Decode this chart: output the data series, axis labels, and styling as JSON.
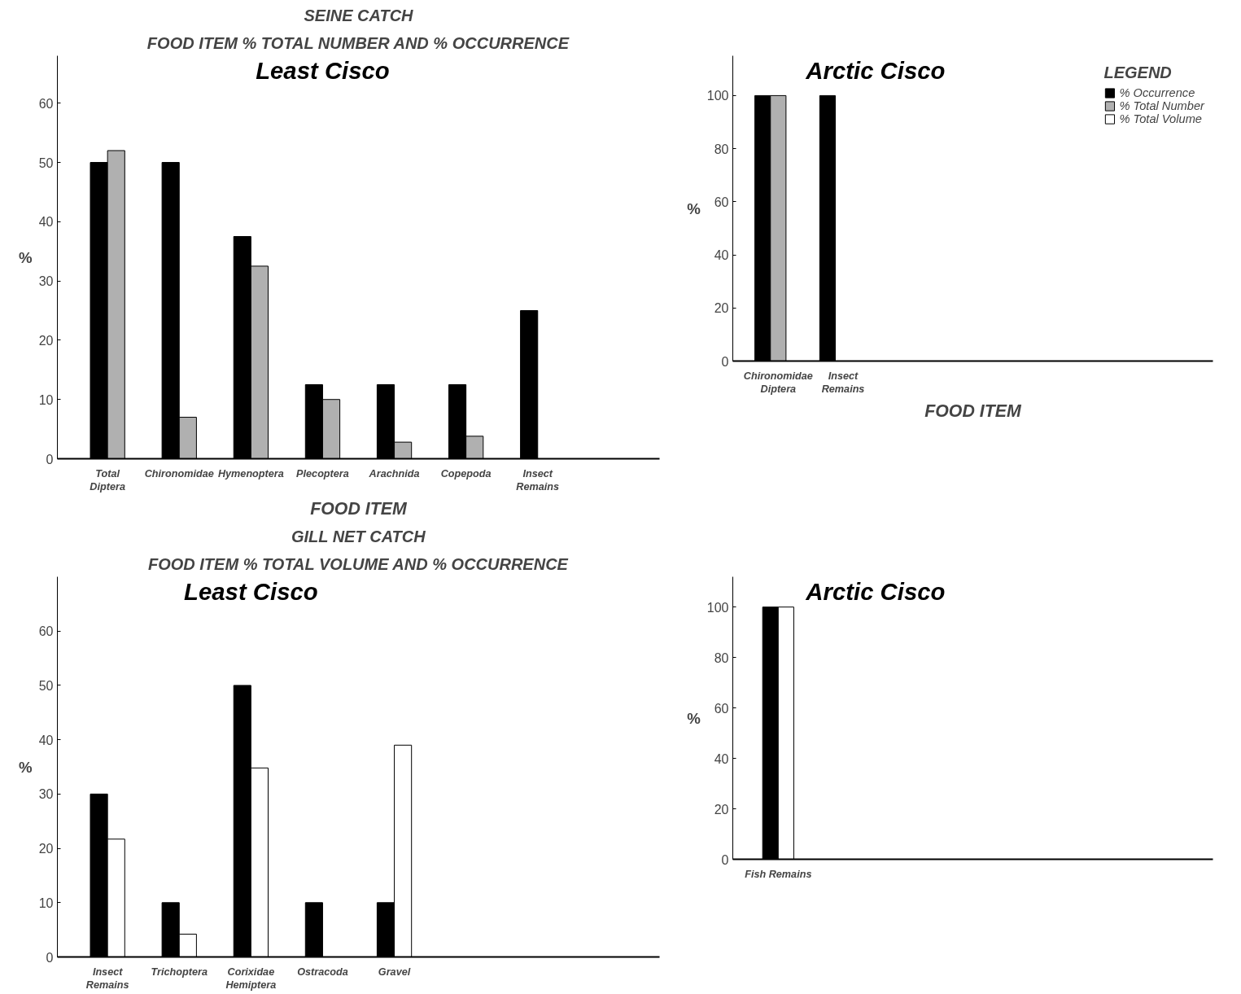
{
  "chart_data": [
    {
      "type": "bar",
      "title": "Least Cisco",
      "annotations": [
        "SEINE CATCH",
        "FOOD ITEM % TOTAL NUMBER AND % OCCURRENCE"
      ],
      "xlabel": "FOOD ITEM",
      "ylabel": "%",
      "categories": [
        "Total\nDiptera",
        "Chironomidae",
        "Hymenoptera",
        "Plecoptera",
        "Arachnida",
        "Copepoda",
        "Insect\nRemains"
      ],
      "series": [
        {
          "color": "#000000",
          "values": [
            50,
            50,
            37.5,
            12.5,
            12.5,
            12.5,
            25
          ]
        },
        {
          "color": "#b0b0b0",
          "values": [
            52,
            7,
            32.5,
            10,
            2.8,
            3.8,
            null
          ]
        }
      ],
      "ylim": [
        0,
        68
      ],
      "yticks": [
        0,
        10,
        20,
        30,
        40,
        50,
        60
      ],
      "grid": false,
      "legend": false
    },
    {
      "type": "bar",
      "title": "Arctic Cisco",
      "xlabel": "FOOD ITEM",
      "ylabel": "%",
      "legend_title": "LEGEND",
      "categories": [
        "Chironomidae\nDiptera",
        "Insect\nRemains"
      ],
      "series": [
        {
          "name": "% Occurrence",
          "color": "#000000",
          "values": [
            100,
            100
          ]
        },
        {
          "name": "% Total Number",
          "color": "#b0b0b0",
          "values": [
            100,
            null
          ]
        },
        {
          "name": "% Total Volume",
          "color": "#ffffff",
          "values": [
            null,
            null
          ]
        }
      ],
      "ylim": [
        0,
        115
      ],
      "yticks": [
        0,
        20,
        40,
        60,
        80,
        100
      ],
      "grid": false,
      "legend": "top right"
    },
    {
      "type": "bar",
      "title": "Least Cisco",
      "annotations": [
        "GILL NET CATCH",
        "FOOD ITEM % TOTAL VOLUME AND % OCCURRENCE"
      ],
      "ylabel": "%",
      "categories": [
        "Insect\nRemains",
        "Trichoptera",
        "Corixidae\nHemiptera",
        "Ostracoda",
        "Gravel"
      ],
      "series": [
        {
          "color": "#000000",
          "values": [
            30,
            10,
            50,
            10,
            10
          ]
        },
        {
          "color": "#ffffff",
          "values": [
            21.7,
            4.2,
            34.8,
            null,
            39
          ]
        }
      ],
      "ylim": [
        0,
        70
      ],
      "yticks": [
        0,
        10,
        20,
        30,
        40,
        50,
        60
      ],
      "grid": false,
      "legend": false
    },
    {
      "type": "bar",
      "title": "Arctic Cisco",
      "ylabel": "%",
      "categories": [
        "Fish Remains"
      ],
      "series": [
        {
          "color": "#000000",
          "values": [
            100
          ]
        },
        {
          "color": "#ffffff",
          "values": [
            100
          ]
        }
      ],
      "ylim": [
        0,
        112
      ],
      "yticks": [
        0,
        20,
        40,
        60,
        80,
        100
      ],
      "grid": false,
      "legend": false
    }
  ]
}
